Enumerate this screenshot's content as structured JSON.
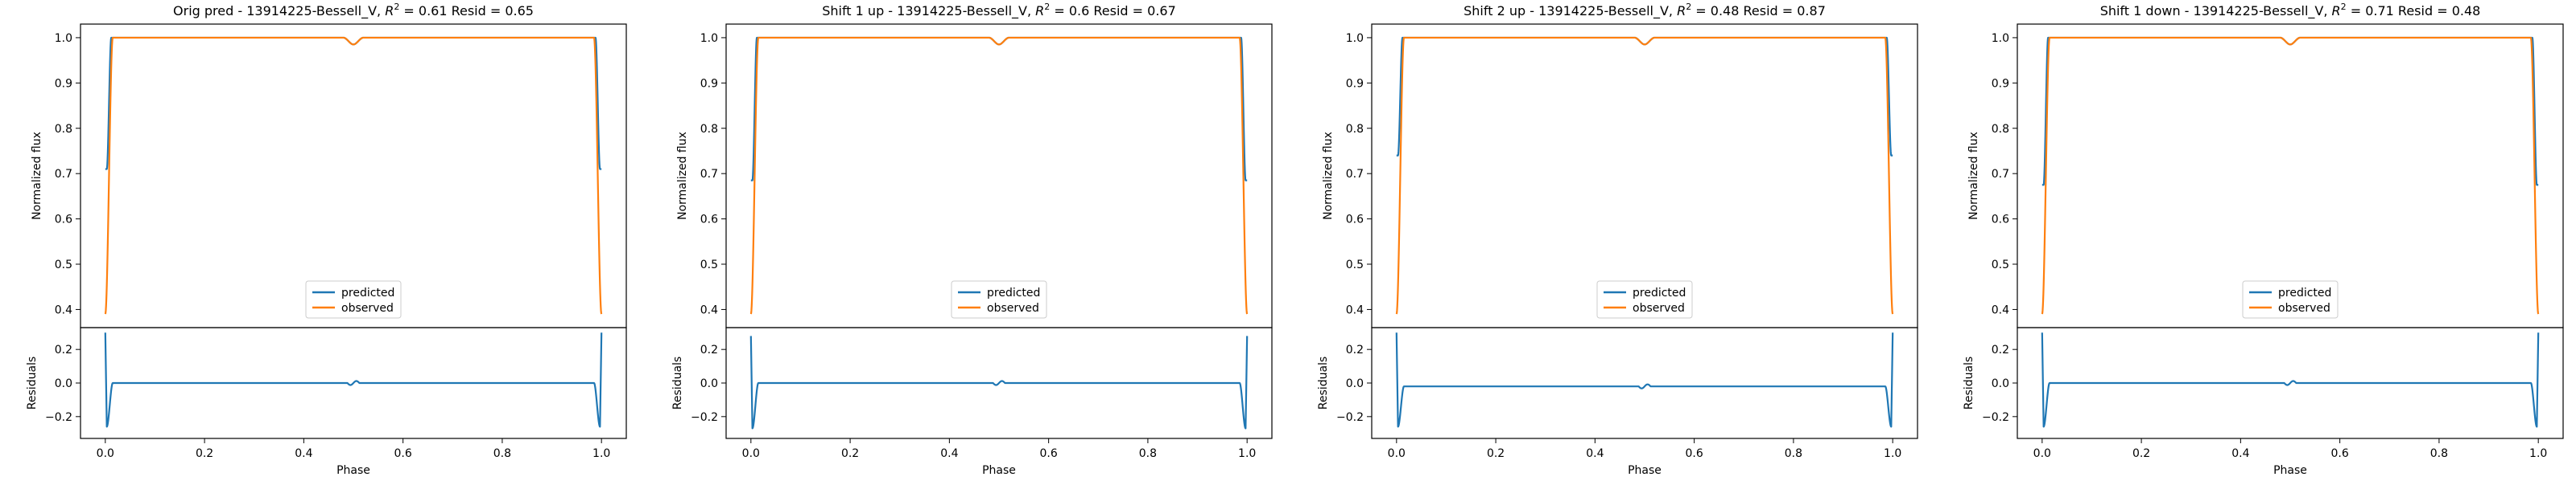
{
  "colors": {
    "predicted": "#1f77b4",
    "observed": "#ff7f0e"
  },
  "shared": {
    "ylabel_top": "Normalized flux",
    "ylabel_bottom": "Residuals",
    "xlabel": "Phase",
    "legend": [
      "predicted",
      "observed"
    ],
    "x_ticks": [
      "0.0",
      "0.2",
      "0.4",
      "0.6",
      "0.8",
      "1.0"
    ],
    "y_ticks_top": [
      "0.4",
      "0.5",
      "0.6",
      "0.7",
      "0.8",
      "0.9",
      "1.0"
    ],
    "y_ticks_bottom": [
      "−0.2",
      "0.0",
      "0.2"
    ]
  },
  "chart_data": [
    {
      "type": "line",
      "title": "Orig pred - 13914225-Bessell_V, R² = 0.61 Resid = 0.65",
      "title_parts": {
        "pre": "Orig pred - 13914225-Bessell_V, ",
        "r2": "0.61",
        "resid": "0.65"
      },
      "xlabel": "Phase",
      "ylabel": "Normalized flux",
      "xlim": [
        -0.05,
        1.05
      ],
      "ylim": [
        0.36,
        1.03
      ],
      "resid_ylim": [
        -0.33,
        0.33
      ],
      "grid": false,
      "legend_position": "lower center",
      "predicted": {
        "edge_value": 0.71,
        "plateau": 1.0,
        "dip_depth": 0.015
      },
      "observed": {
        "edge_value": 0.39,
        "plateau": 1.0,
        "dip_depth": 0.015
      },
      "residuals": {
        "edge_value": 0.3,
        "min": -0.26,
        "baseline": 0.0
      }
    },
    {
      "type": "line",
      "title": "Shift 1 up - 13914225-Bessell_V, R² = 0.6 Resid = 0.67",
      "title_parts": {
        "pre": "Shift 1 up - 13914225-Bessell_V, ",
        "r2": "0.6",
        "resid": "0.67"
      },
      "xlabel": "Phase",
      "ylabel": "Normalized flux",
      "xlim": [
        -0.05,
        1.05
      ],
      "ylim": [
        0.36,
        1.03
      ],
      "resid_ylim": [
        -0.33,
        0.33
      ],
      "grid": false,
      "legend_position": "lower center",
      "predicted": {
        "edge_value": 0.685,
        "plateau": 1.0,
        "dip_depth": 0.015
      },
      "observed": {
        "edge_value": 0.39,
        "plateau": 1.0,
        "dip_depth": 0.015
      },
      "residuals": {
        "edge_value": 0.28,
        "min": -0.27,
        "baseline": 0.0
      }
    },
    {
      "type": "line",
      "title": "Shift 2 up - 13914225-Bessell_V, R² = 0.48 Resid = 0.87",
      "title_parts": {
        "pre": "Shift 2 up - 13914225-Bessell_V, ",
        "r2": "0.48",
        "resid": "0.87"
      },
      "xlabel": "Phase",
      "ylabel": "Normalized flux",
      "xlim": [
        -0.05,
        1.05
      ],
      "ylim": [
        0.36,
        1.03
      ],
      "resid_ylim": [
        -0.33,
        0.33
      ],
      "grid": false,
      "legend_position": "lower center",
      "predicted": {
        "edge_value": 0.74,
        "plateau": 1.0,
        "dip_depth": 0.015
      },
      "observed": {
        "edge_value": 0.39,
        "plateau": 1.0,
        "dip_depth": 0.015
      },
      "residuals": {
        "edge_value": 0.3,
        "min": -0.26,
        "baseline": -0.02
      }
    },
    {
      "type": "line",
      "title": "Shift 1 down - 13914225-Bessell_V, R² = 0.71 Resid = 0.48",
      "title_parts": {
        "pre": "Shift 1 down - 13914225-Bessell_V, ",
        "r2": "0.71",
        "resid": "0.48"
      },
      "xlabel": "Phase",
      "ylabel": "Normalized flux",
      "xlim": [
        -0.05,
        1.05
      ],
      "ylim": [
        0.36,
        1.03
      ],
      "resid_ylim": [
        -0.33,
        0.33
      ],
      "grid": false,
      "legend_position": "lower center",
      "predicted": {
        "edge_value": 0.675,
        "plateau": 1.0,
        "dip_depth": 0.015
      },
      "observed": {
        "edge_value": 0.39,
        "plateau": 1.0,
        "dip_depth": 0.015
      },
      "residuals": {
        "edge_value": 0.3,
        "min": -0.26,
        "baseline": 0.0
      }
    }
  ]
}
